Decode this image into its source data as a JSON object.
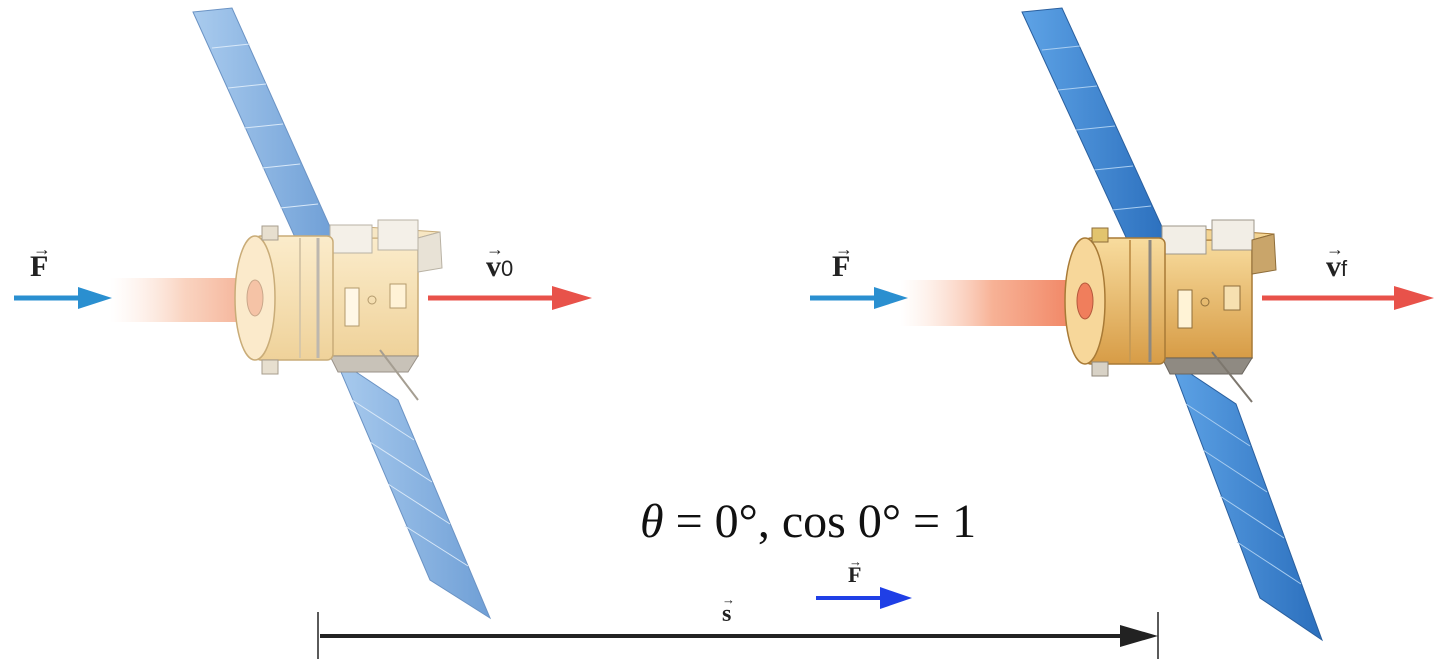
{
  "labels": {
    "force_left": "F",
    "velocity_initial": "v",
    "velocity_initial_sub": "0",
    "force_right": "F",
    "velocity_final": "v",
    "velocity_final_sub": "f",
    "force_small": "F",
    "displacement": "s"
  },
  "equation": {
    "theta": "θ",
    "rest": " = 0°,  cos 0° = 1"
  },
  "colors": {
    "force_arrow": "#2a8fd0",
    "velocity_arrow": "#e8524a",
    "small_force_arrow": "#1f3fe6",
    "displacement_arrow": "#222222",
    "panel_blue_left": "#8fb9e6",
    "panel_blue_right": "#3f89d4",
    "body_gold_left": "#f5dfb0",
    "body_gold_right": "#e9b96a",
    "exhaust": "#f6b79a"
  },
  "icons": [
    "satellite-initial",
    "satellite-final"
  ]
}
